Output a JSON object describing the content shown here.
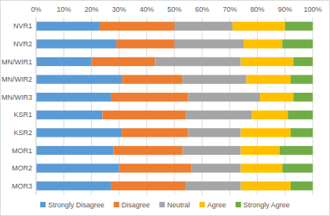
{
  "chart_data": {
    "type": "bar",
    "orientation": "horizontal",
    "stacked": true,
    "grid": true,
    "legend": "bottom",
    "categories": [
      "NVR1",
      "NVR2",
      "MN/WIR1",
      "MN/WIR2",
      "MN/WIR3",
      "KSR1",
      "KSR2",
      "MOR1",
      "MOR2",
      "MOR3"
    ],
    "series": [
      {
        "name": "Strongly Disagree",
        "color": "#5b9bd5",
        "values": [
          23,
          29,
          20,
          31,
          27,
          24,
          31,
          28,
          30,
          27
        ]
      },
      {
        "name": "Disagree",
        "color": "#ed7d31",
        "values": [
          27,
          21,
          23,
          22,
          28,
          30,
          24,
          25,
          26,
          27
        ]
      },
      {
        "name": "Neutral",
        "color": "#a5a5a5",
        "values": [
          21,
          25,
          31,
          23,
          26,
          24,
          19,
          21,
          18,
          20
        ]
      },
      {
        "name": "Agree",
        "color": "#ffc000",
        "values": [
          19,
          14,
          19,
          16,
          12,
          13,
          18,
          14,
          15,
          18
        ]
      },
      {
        "name": "Strongly Agree",
        "color": "#70ad47",
        "values": [
          10,
          11,
          7,
          8,
          7,
          9,
          8,
          12,
          11,
          8
        ]
      }
    ],
    "xlim": [
      0,
      100
    ],
    "xticks": [
      {
        "value": 0,
        "label": "0%"
      },
      {
        "value": 10,
        "label": "10%"
      },
      {
        "value": 20,
        "label": "20%"
      },
      {
        "value": 30,
        "label": "30%"
      },
      {
        "value": 40,
        "label": "40%"
      },
      {
        "value": 50,
        "label": "50%"
      },
      {
        "value": 60,
        "label": "60%"
      },
      {
        "value": 70,
        "label": "70%"
      },
      {
        "value": 80,
        "label": "80%"
      },
      {
        "value": 90,
        "label": "90%"
      },
      {
        "value": 100,
        "label": "100%"
      }
    ]
  }
}
